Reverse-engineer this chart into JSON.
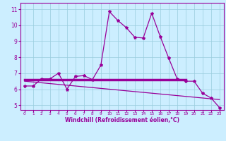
{
  "xlabel": "Windchill (Refroidissement éolien,°C)",
  "background_color": "#cceeff",
  "grid_color": "#99ccdd",
  "line_color": "#990099",
  "xlim": [
    -0.5,
    23.5
  ],
  "ylim": [
    4.7,
    11.4
  ],
  "yticks": [
    5,
    6,
    7,
    8,
    9,
    10,
    11
  ],
  "xticks": [
    0,
    1,
    2,
    3,
    4,
    5,
    6,
    7,
    8,
    9,
    10,
    11,
    12,
    13,
    14,
    15,
    16,
    17,
    18,
    19,
    20,
    21,
    22,
    23
  ],
  "line1_x": [
    0,
    1,
    2,
    3,
    4,
    5,
    6,
    7,
    8,
    9,
    10,
    11,
    12,
    13,
    14,
    15,
    16,
    17,
    18,
    19,
    20,
    21,
    22,
    23
  ],
  "line1_y": [
    6.2,
    6.2,
    6.65,
    6.65,
    7.0,
    6.0,
    6.8,
    6.85,
    6.6,
    7.5,
    10.85,
    10.3,
    9.85,
    9.25,
    9.2,
    10.75,
    9.3,
    7.95,
    6.65,
    6.5,
    6.5,
    5.75,
    5.45,
    4.85
  ],
  "line2_x": [
    0,
    19
  ],
  "line2_y": [
    6.6,
    6.6
  ],
  "line3_x": [
    0,
    23
  ],
  "line3_y": [
    6.5,
    5.35
  ],
  "markersize": 3,
  "linewidth": 0.9,
  "line2_linewidth": 2.5,
  "line3_linewidth": 0.9
}
